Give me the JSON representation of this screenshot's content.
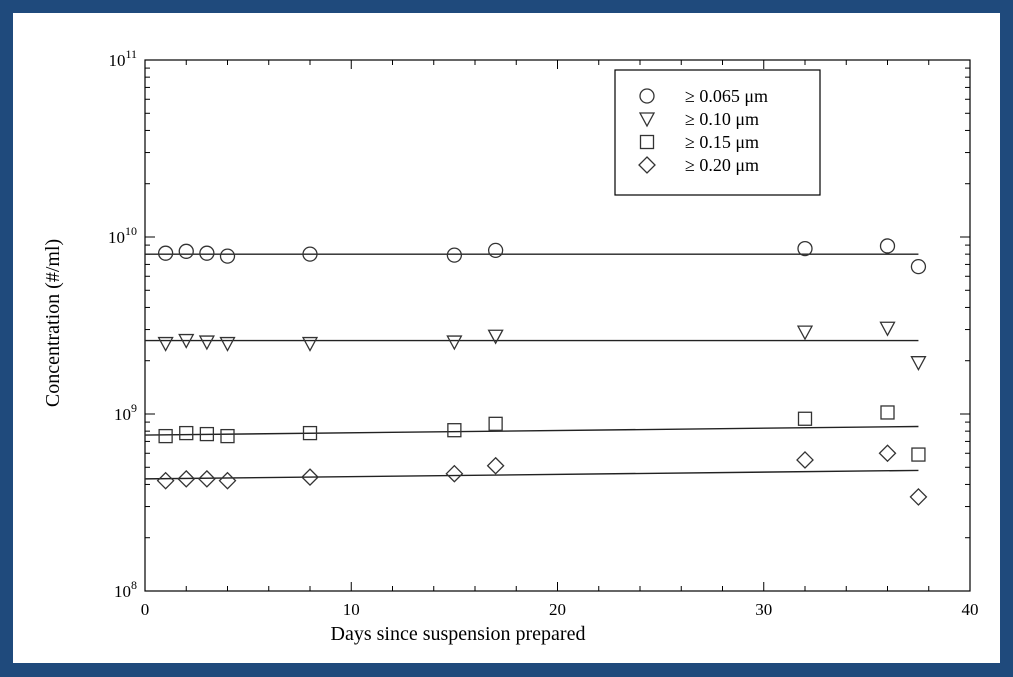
{
  "chart_data": {
    "type": "scatter",
    "xlabel": "Days since suspension prepared",
    "ylabel": "Concentration (#/ml)",
    "xlim": [
      0,
      40
    ],
    "ylim": [
      100000000,
      100000000000
    ],
    "yscale": "log",
    "x_ticks": [
      {
        "value": 0,
        "label": "0"
      },
      {
        "value": 10,
        "label": "10"
      },
      {
        "value": 20,
        "label": "20"
      },
      {
        "value": 30,
        "label": "30"
      },
      {
        "value": 40,
        "label": "40"
      }
    ],
    "y_ticks": [
      {
        "value": 100000000,
        "base": "10",
        "exp": "8"
      },
      {
        "value": 1000000000,
        "base": "10",
        "exp": "9"
      },
      {
        "value": 10000000000,
        "base": "10",
        "exp": "10"
      },
      {
        "value": 100000000000,
        "base": "10",
        "exp": "11"
      }
    ],
    "grid": false,
    "legend_position": "top-right",
    "series": [
      {
        "name": "≥ 0.065 μm",
        "marker": "circle",
        "x": [
          1,
          2,
          3,
          4,
          8,
          15,
          17,
          32,
          36,
          37.5
        ],
        "y": [
          8100000000,
          8300000000,
          8100000000,
          7800000000,
          8000000000,
          7900000000,
          8400000000,
          8600000000,
          8900000000,
          6800000000
        ],
        "fit": [
          [
            0,
            8000000000
          ],
          [
            37.5,
            8000000000
          ]
        ]
      },
      {
        "name": "≥ 0.10 μm",
        "marker": "triangle-down",
        "x": [
          1,
          2,
          3,
          4,
          8,
          15,
          17,
          32,
          36,
          37.5
        ],
        "y": [
          2500000000,
          2600000000,
          2550000000,
          2500000000,
          2500000000,
          2550000000,
          2750000000,
          2900000000,
          3050000000,
          1950000000
        ],
        "fit": [
          [
            0,
            2600000000
          ],
          [
            37.5,
            2600000000
          ]
        ]
      },
      {
        "name": "≥ 0.15 μm",
        "marker": "square",
        "x": [
          1,
          2,
          3,
          4,
          8,
          15,
          17,
          32,
          36,
          37.5
        ],
        "y": [
          750000000,
          780000000,
          770000000,
          750000000,
          780000000,
          810000000,
          880000000,
          940000000,
          1020000000,
          590000000
        ],
        "fit": [
          [
            0,
            760000000
          ],
          [
            37.5,
            850000000
          ]
        ]
      },
      {
        "name": "≥ 0.20 μm",
        "marker": "diamond",
        "x": [
          1,
          2,
          3,
          4,
          8,
          15,
          17,
          32,
          36,
          37.5
        ],
        "y": [
          420000000,
          430000000,
          430000000,
          420000000,
          440000000,
          460000000,
          510000000,
          550000000,
          600000000,
          340000000
        ],
        "fit": [
          [
            0,
            430000000
          ],
          [
            37.5,
            480000000
          ]
        ]
      }
    ]
  }
}
